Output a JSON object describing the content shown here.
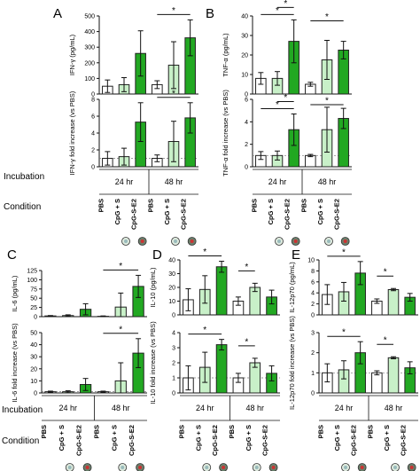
{
  "figure": {
    "row_labels": {
      "incubation": "Incubation",
      "condition": "Condition",
      "incubation_c": "Incubation",
      "condition_c": "Condition"
    },
    "incubations": [
      "24 hr",
      "48 hr"
    ],
    "conditions": [
      "PBS",
      "CpG + S",
      "CpG-S-E2"
    ],
    "colors": {
      "PBS": "#ffffff",
      "CpG + S": "#c8f0c8",
      "CpG-S-E2": "#22a822",
      "stroke": "#222222"
    }
  },
  "chart_data": [
    {
      "id": "A-top",
      "panel": "A",
      "type": "bar",
      "ylabel": "IFN-γ (pg/mL)",
      "ylim": [
        0,
        500
      ],
      "yticks": [
        "0",
        "100",
        "200",
        "300",
        "400",
        "500"
      ],
      "categories": [
        "PBS 24 hr",
        "CpG + S 24 hr",
        "CpG-S-E2 24 hr",
        "PBS 48 hr",
        "CpG + S 48 hr",
        "CpG-S-E2 48 hr"
      ],
      "values": [
        50,
        60,
        260,
        60,
        185,
        360
      ],
      "errors": [
        40,
        45,
        145,
        25,
        150,
        115
      ],
      "annotations": [
        {
          "from": 3,
          "to": 5,
          "label": "*"
        }
      ]
    },
    {
      "id": "A-bottom",
      "panel": "A",
      "type": "bar",
      "ylabel": "IFN-γ fold increase (vs PBS)",
      "ylim": [
        0,
        8
      ],
      "yticks": [
        "0",
        "2",
        "4",
        "6",
        "8"
      ],
      "categories": [
        "PBS 24 hr",
        "CpG + S 24 hr",
        "CpG-S-E2 24 hr",
        "PBS 48 hr",
        "CpG + S 48 hr",
        "CpG-S-E2 48 hr"
      ],
      "values": [
        1,
        1.2,
        5.3,
        1,
        3,
        5.8
      ],
      "errors": [
        0.8,
        1,
        2.3,
        0.4,
        2.4,
        1.8
      ],
      "annotations": [
        {
          "from": 3,
          "to": 5,
          "label": "*"
        }
      ]
    },
    {
      "id": "B-top",
      "panel": "B",
      "type": "bar",
      "ylabel": "TNF-α (pg/mL)",
      "ylim": [
        0,
        40
      ],
      "yticks": [
        "0",
        "10",
        "20",
        "30",
        "40"
      ],
      "categories": [
        "PBS 24 hr",
        "CpG + S 24 hr",
        "CpG-S-E2 24 hr",
        "PBS 48 hr",
        "CpG + S 48 hr",
        "CpG-S-E2 48 hr"
      ],
      "values": [
        8,
        8,
        27,
        5,
        17.5,
        22.5
      ],
      "errors": [
        3,
        3.5,
        11,
        1,
        10,
        4.5
      ],
      "annotations": [
        {
          "from": 0,
          "to": 2,
          "label": "*"
        },
        {
          "from": 1,
          "to": 2,
          "label": "*"
        },
        {
          "from": 3,
          "to": 5,
          "label": "*"
        }
      ]
    },
    {
      "id": "B-bottom",
      "panel": "B",
      "type": "bar",
      "ylabel": "TNF-α fold increase (vs PBS)",
      "ylim": [
        0,
        6
      ],
      "yticks": [
        "0",
        "2",
        "4",
        "6"
      ],
      "categories": [
        "PBS 24 hr",
        "CpG + S 24 hr",
        "CpG-S-E2 24 hr",
        "PBS 48 hr",
        "CpG + S 48 hr",
        "CpG-S-E2 48 hr"
      ],
      "values": [
        1,
        1,
        3.3,
        1,
        3.3,
        4.3
      ],
      "errors": [
        0.35,
        0.4,
        1.4,
        0.1,
        2,
        0.9
      ],
      "annotations": [
        {
          "from": 0,
          "to": 2,
          "label": "*"
        },
        {
          "from": 1,
          "to": 2,
          "label": "*"
        },
        {
          "from": 3,
          "to": 5,
          "label": "*"
        }
      ]
    },
    {
      "id": "C-top",
      "panel": "C",
      "type": "bar",
      "ylabel": "IL-6 (pg/mL)",
      "ylim": [
        0,
        125
      ],
      "yticks": [
        "0",
        "25",
        "50",
        "75",
        "100",
        "125"
      ],
      "categories": [
        "PBS 24 hr",
        "CpG + S 24 hr",
        "CpG-S-E2 24 hr",
        "PBS 48 hr",
        "CpG + S 48 hr",
        "CpG-S-E2 48 hr"
      ],
      "values": [
        2,
        3,
        20,
        1,
        26,
        82
      ],
      "errors": [
        1,
        2,
        15,
        1,
        38,
        30
      ],
      "annotations": [
        {
          "from": 3,
          "to": 5,
          "label": "*"
        }
      ]
    },
    {
      "id": "C-bottom",
      "panel": "C",
      "type": "bar",
      "ylabel": "IL-6 fold increase (vs PBS)",
      "ylim": [
        0,
        50
      ],
      "yticks": [
        "0",
        "10",
        "20",
        "30",
        "40",
        "50"
      ],
      "categories": [
        "PBS 24 hr",
        "CpG + S 24 hr",
        "CpG-S-E2 24 hr",
        "PBS 48 hr",
        "CpG + S 48 hr",
        "CpG-S-E2 48 hr"
      ],
      "values": [
        1,
        1,
        7,
        1,
        10,
        33
      ],
      "errors": [
        0.5,
        0.8,
        5,
        0.5,
        15,
        12
      ],
      "annotations": [
        {
          "from": 3,
          "to": 5,
          "label": "*"
        }
      ]
    },
    {
      "id": "D-top",
      "panel": "D",
      "type": "bar",
      "ylabel": "IL-10 (pg/mL)",
      "ylim": [
        0,
        40
      ],
      "yticks": [
        "0",
        "10",
        "20",
        "30",
        "40"
      ],
      "categories": [
        "PBS 24 hr",
        "CpG + S 24 hr",
        "CpG-S-E2 24 hr",
        "PBS 48 hr",
        "CpG + S 48 hr",
        "CpG-S-E2 48 hr"
      ],
      "values": [
        11,
        18.5,
        35,
        10,
        20,
        13
      ],
      "errors": [
        8,
        10,
        4,
        3,
        3,
        5
      ],
      "annotations": [
        {
          "from": 0,
          "to": 2,
          "label": "*"
        },
        {
          "from": 3,
          "to": 4,
          "label": "*"
        }
      ]
    },
    {
      "id": "D-bottom",
      "panel": "D",
      "type": "bar",
      "ylabel": "IL-10 fold increase (vs PBS)",
      "ylim": [
        0,
        4
      ],
      "yticks": [
        "0",
        "1",
        "2",
        "3",
        "4"
      ],
      "categories": [
        "PBS 24 hr",
        "CpG + S 24 hr",
        "CpG-S-E2 24 hr",
        "PBS 48 hr",
        "CpG + S 48 hr",
        "CpG-S-E2 48 hr"
      ],
      "values": [
        1,
        1.7,
        3.2,
        1,
        2,
        1.3
      ],
      "errors": [
        0.8,
        1,
        0.35,
        0.3,
        0.3,
        0.5
      ],
      "annotations": [
        {
          "from": 0,
          "to": 2,
          "label": "*"
        },
        {
          "from": 3,
          "to": 4,
          "label": "*"
        }
      ]
    },
    {
      "id": "E-top",
      "panel": "E",
      "type": "bar",
      "ylabel": "IL-12p70 (pg/mL)",
      "ylim": [
        0,
        10
      ],
      "yticks": [
        "0",
        "2",
        "4",
        "6",
        "8",
        "10"
      ],
      "categories": [
        "PBS 24 hr",
        "CpG + S 24 hr",
        "CpG-S-E2 24 hr",
        "PBS 48 hr",
        "CpG + S 48 hr",
        "CpG-S-E2 48 hr"
      ],
      "values": [
        3.7,
        4.2,
        7.6,
        2.5,
        4.6,
        3.2
      ],
      "errors": [
        1.8,
        1.7,
        2.1,
        0.4,
        0.2,
        0.7
      ],
      "annotations": [
        {
          "from": 0,
          "to": 2,
          "label": "*"
        },
        {
          "from": 3,
          "to": 4,
          "label": "*"
        }
      ]
    },
    {
      "id": "E-bottom",
      "panel": "E",
      "type": "bar",
      "ylabel": "IL-12p70 fold increase (vs PBS)",
      "ylim": [
        0,
        3
      ],
      "yticks": [
        "0",
        "1",
        "2",
        "3"
      ],
      "categories": [
        "PBS 24 hr",
        "CpG + S 24 hr",
        "CpG-S-E2 24 hr",
        "PBS 48 hr",
        "CpG + S 48 hr",
        "CpG-S-E2 48 hr"
      ],
      "values": [
        1,
        1.15,
        2,
        1,
        1.75,
        1.25
      ],
      "errors": [
        0.45,
        0.45,
        0.55,
        0.1,
        0.05,
        0.3
      ],
      "annotations": [
        {
          "from": 0,
          "to": 2,
          "label": "*"
        },
        {
          "from": 3,
          "to": 4,
          "label": "*"
        }
      ]
    }
  ]
}
